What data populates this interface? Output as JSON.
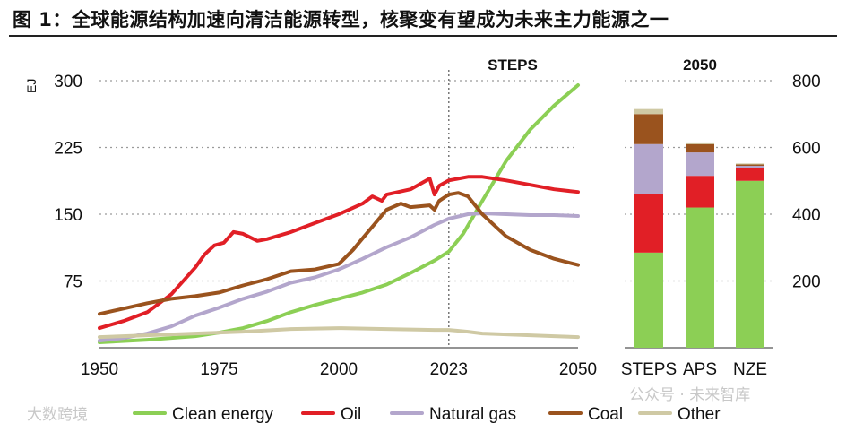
{
  "title": "图 1：全球能源结构加速向清洁能源转型，核聚变有望成为未来主力能源之一",
  "watermarks": [
    "大数跨境",
    "公众号 · 未来智库"
  ],
  "chart_data": [
    {
      "type": "line",
      "title": "STEPS",
      "ylabel": "EJ",
      "xlim": [
        1950,
        2050
      ],
      "ylim": [
        0,
        300
      ],
      "xticks": [
        1950,
        1975,
        2000,
        2023,
        2050
      ],
      "yticks": [
        75,
        150,
        225,
        300
      ],
      "marker_year": 2023,
      "series": [
        {
          "name": "Clean energy",
          "color": "#8ccf55",
          "x": [
            1950,
            1960,
            1970,
            1975,
            1980,
            1985,
            1990,
            1995,
            2000,
            2005,
            2010,
            2015,
            2020,
            2023,
            2026,
            2030,
            2035,
            2040,
            2045,
            2050
          ],
          "y": [
            6,
            9,
            13,
            17,
            22,
            30,
            40,
            48,
            55,
            62,
            71,
            84,
            98,
            108,
            128,
            165,
            210,
            245,
            272,
            295
          ]
        },
        {
          "name": "Oil",
          "color": "#e11f26",
          "x": [
            1950,
            1955,
            1960,
            1965,
            1970,
            1972,
            1974,
            1976,
            1978,
            1980,
            1983,
            1985,
            1990,
            1995,
            2000,
            2005,
            2007,
            2009,
            2010,
            2015,
            2019,
            2020,
            2021,
            2023,
            2027,
            2030,
            2035,
            2040,
            2045,
            2050
          ],
          "y": [
            22,
            30,
            40,
            60,
            90,
            105,
            115,
            118,
            130,
            128,
            120,
            122,
            130,
            140,
            150,
            162,
            170,
            165,
            172,
            178,
            190,
            172,
            182,
            188,
            192,
            192,
            188,
            183,
            178,
            175
          ]
        },
        {
          "name": "Natural gas",
          "color": "#b3a6cc",
          "x": [
            1950,
            1955,
            1960,
            1965,
            1970,
            1975,
            1980,
            1985,
            1990,
            1995,
            2000,
            2005,
            2010,
            2015,
            2020,
            2023,
            2027,
            2030,
            2035,
            2040,
            2045,
            2050
          ],
          "y": [
            8,
            11,
            16,
            24,
            36,
            45,
            55,
            63,
            73,
            79,
            88,
            100,
            113,
            124,
            138,
            145,
            150,
            151,
            150,
            149,
            149,
            148
          ]
        },
        {
          "name": "Coal",
          "color": "#9a531e",
          "x": [
            1950,
            1955,
            1960,
            1965,
            1970,
            1975,
            1980,
            1985,
            1990,
            1995,
            2000,
            2003,
            2005,
            2010,
            2013,
            2015,
            2019,
            2020,
            2021,
            2023,
            2025,
            2027,
            2030,
            2035,
            2040,
            2045,
            2050
          ],
          "y": [
            38,
            44,
            50,
            55,
            58,
            62,
            70,
            77,
            86,
            88,
            94,
            110,
            123,
            155,
            162,
            158,
            160,
            155,
            165,
            172,
            174,
            170,
            150,
            125,
            110,
            100,
            93
          ]
        },
        {
          "name": "Other",
          "color": "#cfc9a4",
          "x": [
            1950,
            1960,
            1970,
            1980,
            1990,
            2000,
            2010,
            2020,
            2023,
            2027,
            2030,
            2035,
            2040,
            2045,
            2050
          ],
          "y": [
            12,
            14,
            16,
            18,
            21,
            22,
            21,
            20,
            20,
            18,
            16,
            15,
            14,
            13,
            12
          ]
        }
      ]
    },
    {
      "type": "bar",
      "title": "2050",
      "stacked": true,
      "ylim": [
        0,
        800
      ],
      "yticks": [
        200,
        400,
        600,
        800
      ],
      "categories": [
        "STEPS",
        "APS",
        "NZE"
      ],
      "series": [
        {
          "name": "Clean energy",
          "color": "#8ccf55",
          "values": [
            285,
            420,
            500
          ]
        },
        {
          "name": "Oil",
          "color": "#e11f26",
          "values": [
            175,
            95,
            38
          ]
        },
        {
          "name": "Natural gas",
          "color": "#b3a6cc",
          "values": [
            150,
            70,
            7
          ]
        },
        {
          "name": "Coal",
          "color": "#9a531e",
          "values": [
            90,
            25,
            4
          ]
        },
        {
          "name": "Other",
          "color": "#cfc9a4",
          "values": [
            15,
            5,
            3
          ]
        }
      ]
    }
  ],
  "legend": [
    "Clean energy",
    "Oil",
    "Natural gas",
    "Coal",
    "Other"
  ]
}
